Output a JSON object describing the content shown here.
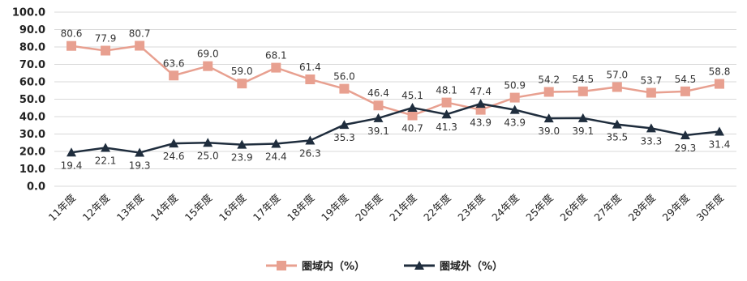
{
  "chart_data": {
    "type": "line",
    "categories": [
      "11年度",
      "12年度",
      "13年度",
      "14年度",
      "15年度",
      "16年度",
      "17年度",
      "18年度",
      "19年度",
      "20年度",
      "21年度",
      "22年度",
      "23年度",
      "24年度",
      "25年度",
      "26年度",
      "27年度",
      "28年度",
      "29年度",
      "30年度"
    ],
    "ylim": [
      0,
      100
    ],
    "yticks": [
      "0.0",
      "10.0",
      "20.0",
      "30.0",
      "40.0",
      "50.0",
      "60.0",
      "70.0",
      "80.0",
      "90.0",
      "100.0"
    ],
    "grid": true,
    "legend_position": "bottom",
    "series": [
      {
        "name": "圏域内（%）",
        "color": "#e8a090",
        "marker": "square",
        "values": [
          80.6,
          77.9,
          80.7,
          63.6,
          69.0,
          59.0,
          68.1,
          61.4,
          56.0,
          46.4,
          40.7,
          48.1,
          43.9,
          50.9,
          54.2,
          54.5,
          57.0,
          53.7,
          54.5,
          58.8
        ],
        "labels": [
          "80.6",
          "77.9",
          "80.7",
          "63.6",
          "69.0",
          "59.0",
          "68.1",
          "61.4",
          "56.0",
          "46.4",
          "40.7",
          "48.1",
          "43.9",
          "50.9",
          "54.2",
          "54.5",
          "57.0",
          "53.7",
          "54.5",
          "58.8"
        ]
      },
      {
        "name": "圏域外（%）",
        "color": "#1f2d3d",
        "marker": "triangle",
        "values": [
          19.4,
          22.1,
          19.3,
          24.6,
          25.0,
          23.9,
          24.4,
          26.3,
          35.3,
          39.1,
          45.1,
          41.3,
          47.4,
          43.9,
          39.0,
          39.1,
          35.5,
          33.3,
          29.3,
          31.4
        ],
        "labels": [
          "19.4",
          "22.1",
          "19.3",
          "24.6",
          "25.0",
          "23.9",
          "24.4",
          "26.3",
          "35.3",
          "39.1",
          "45.1",
          "41.3",
          "47.4",
          "43.9",
          "39.0",
          "39.1",
          "35.5",
          "33.3",
          "29.3",
          "31.4"
        ]
      }
    ]
  }
}
